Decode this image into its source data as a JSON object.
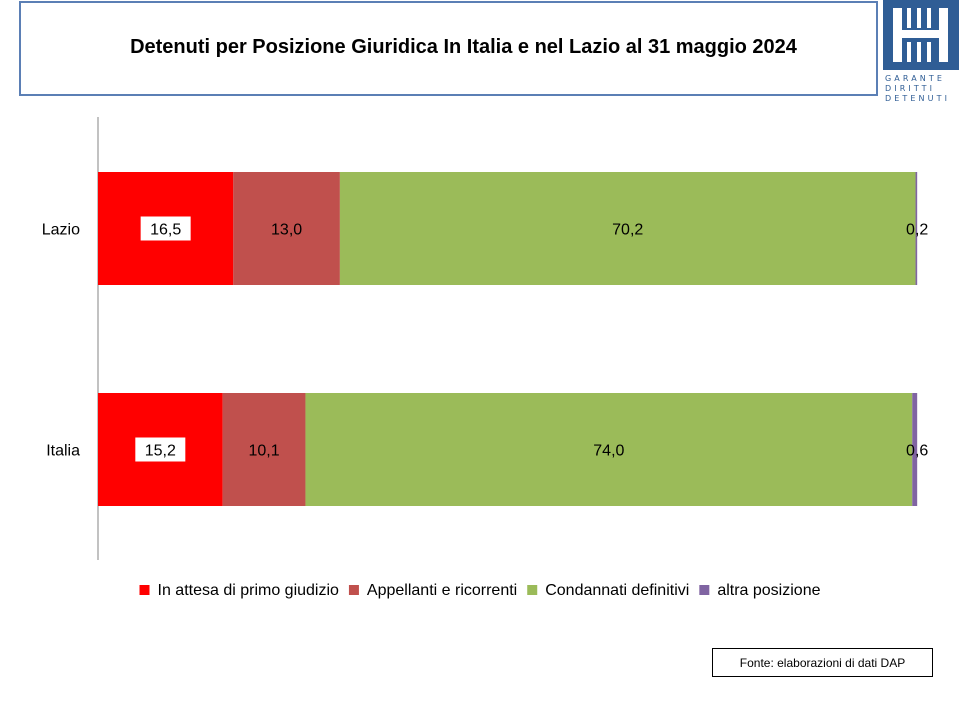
{
  "title": "Detenuti per Posizione Giuridica  In Italia e nel Lazio al 31 maggio 2024",
  "logo": {
    "lines": [
      "GARANTE",
      "DIRITTI",
      "DETENUTI"
    ],
    "color": "#2f5d95"
  },
  "source": "Fonte: elaborazioni di dati DAP",
  "chart_data": {
    "type": "bar",
    "orientation": "horizontal",
    "stacked": true,
    "categories": [
      "Lazio",
      "Italia"
    ],
    "series": [
      {
        "name": "In attesa di primo giudizio",
        "color": "#ff0000",
        "values": [
          16.5,
          15.2
        ],
        "labels": [
          "16,5",
          "15,2"
        ]
      },
      {
        "name": "Appellanti e ricorrenti",
        "color": "#c0504d",
        "values": [
          13.0,
          10.1
        ],
        "labels": [
          "13,0",
          "10,1"
        ]
      },
      {
        "name": "Condannati definitivi",
        "color": "#9bbb59",
        "values": [
          70.2,
          74.0
        ],
        "labels": [
          "70,2",
          "74,0"
        ]
      },
      {
        "name": "altra posizione",
        "color": "#8064a2",
        "values": [
          0.2,
          0.6
        ],
        "labels": [
          "0,2",
          "0,6"
        ]
      }
    ],
    "xlim": [
      0,
      100
    ],
    "grid": false,
    "legend": "bottom"
  }
}
